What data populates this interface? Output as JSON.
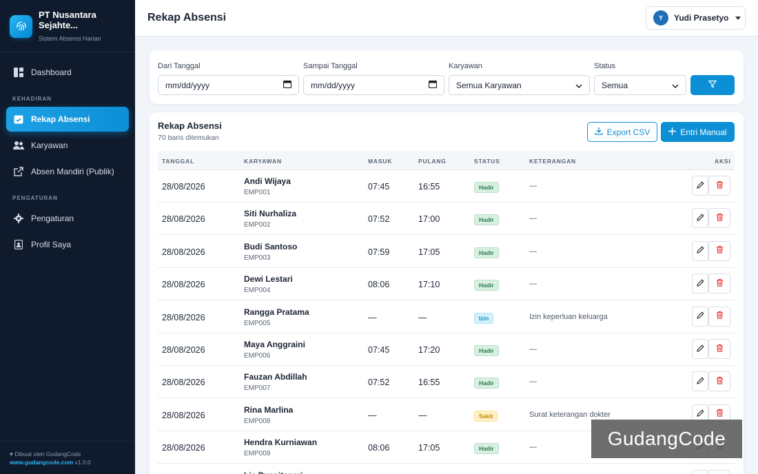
{
  "brand": {
    "name": "PT Nusantara Sejahte...",
    "subtitle": "Sistem Absensi Harian",
    "icon": "fingerprint-icon"
  },
  "sidebar": {
    "items": [
      {
        "label": "Dashboard",
        "icon": "dashboard-icon"
      },
      {
        "label": "Rekap Absensi",
        "icon": "calendar-check-icon",
        "active": true
      },
      {
        "label": "Karyawan",
        "icon": "users-icon"
      },
      {
        "label": "Absen Mandiri (Publik)",
        "icon": "external-link-icon"
      },
      {
        "label": "Pengaturan",
        "icon": "gear-icon"
      },
      {
        "label": "Profil Saya",
        "icon": "id-badge-icon"
      }
    ],
    "sections": [
      "KEHADIRAN",
      "PENGATURAN"
    ],
    "footer": {
      "line1": "Dibuat oleh GudangCode",
      "site": "www.gudangcode.com",
      "version": "v1.0.0"
    }
  },
  "header": {
    "title": "Rekap Absensi",
    "user": {
      "initial": "Y",
      "name": "Yudi Prasetyo"
    }
  },
  "filters": {
    "from": {
      "label": "Dari Tanggal",
      "value": "mm/dd/yyyy"
    },
    "to": {
      "label": "Sampai Tanggal",
      "value": "mm/dd/yyyy"
    },
    "employee": {
      "label": "Karyawan",
      "value": "Semua Karyawan"
    },
    "status": {
      "label": "Status",
      "value": "Semua"
    }
  },
  "table": {
    "title": "Rekap Absensi",
    "count_text": "70 baris ditemukan",
    "export_label": "Export CSV",
    "add_label": "Entri Manual",
    "columns": [
      "TANGGAL",
      "KARYAWAN",
      "MASUK",
      "PULANG",
      "STATUS",
      "KETERANGAN",
      "AKSI"
    ],
    "rows": [
      {
        "date": "28/08/2026",
        "name": "Andi Wijaya",
        "id": "EMP001",
        "in": "07:45",
        "out": "16:55",
        "status": "Hadir",
        "note": "—"
      },
      {
        "date": "28/08/2026",
        "name": "Siti Nurhaliza",
        "id": "EMP002",
        "in": "07:52",
        "out": "17:00",
        "status": "Hadir",
        "note": "—"
      },
      {
        "date": "28/08/2026",
        "name": "Budi Santoso",
        "id": "EMP003",
        "in": "07:59",
        "out": "17:05",
        "status": "Hadir",
        "note": "—"
      },
      {
        "date": "28/08/2026",
        "name": "Dewi Lestari",
        "id": "EMP004",
        "in": "08:06",
        "out": "17:10",
        "status": "Hadir",
        "note": "—"
      },
      {
        "date": "28/08/2026",
        "name": "Rangga Pratama",
        "id": "EMP005",
        "in": "—",
        "out": "—",
        "status": "Izin",
        "note": "Izin keperluan keluarga"
      },
      {
        "date": "28/08/2026",
        "name": "Maya Anggraini",
        "id": "EMP006",
        "in": "07:45",
        "out": "17:20",
        "status": "Hadir",
        "note": "—"
      },
      {
        "date": "28/08/2026",
        "name": "Fauzan Abdillah",
        "id": "EMP007",
        "in": "07:52",
        "out": "16:55",
        "status": "Hadir",
        "note": "—"
      },
      {
        "date": "28/08/2026",
        "name": "Rina Marlina",
        "id": "EMP008",
        "in": "—",
        "out": "—",
        "status": "Sakit",
        "note": "Surat keterangan dokter"
      },
      {
        "date": "28/08/2026",
        "name": "Hendra Kurniawan",
        "id": "EMP009",
        "in": "08:06",
        "out": "17:05",
        "status": "Hadir",
        "note": "—"
      },
      {
        "date": "",
        "name": "Lia Puspitasari",
        "id": "",
        "in": "",
        "out": "",
        "status": "",
        "note": ""
      }
    ]
  },
  "watermark": "GudangCode",
  "colors": {
    "accent": "#0d8fd6",
    "sidebar": "#0f1b2c",
    "hadir": "#2e7d4f",
    "izin": "#1490c0",
    "sakit": "#c48a00",
    "delete": "#e53935"
  }
}
